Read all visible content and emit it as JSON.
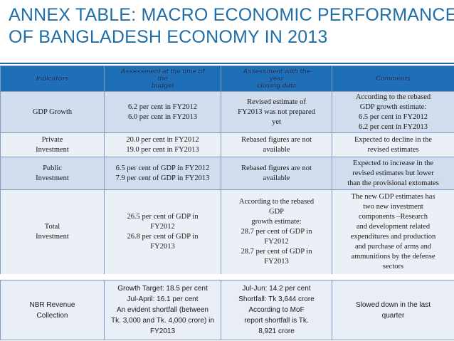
{
  "title": {
    "line1": "ANNEX TABLE: MACRO ECONOMIC PERFORMANCE",
    "line2": "OF BANGLADESH ECONOMY IN 2013"
  },
  "table": {
    "headers": [
      "Indicators",
      "Assessment at the time of\nthe\nbudget",
      "Assessment with the\nyear\nclosing data",
      "Comments"
    ],
    "rows": [
      {
        "indicator": "GDP Growth",
        "budget": "6.2 per cent in FY2012\n6.0 per cent in FY2013",
        "closing": "Revised estimate of\nFY2013 was not prepared\nyet",
        "comments": "According to the rebased\nGDP growth estimate:\n6.5 per cent in FY2012\n6.2 per cent in FY2013"
      },
      {
        "indicator": "Private\nInvestment",
        "budget": "20.0 per cent in FY2012\n19.0 per cent in FY2013",
        "closing": "Rebased figures are not\navailable",
        "comments": "Expected to decline in the\nrevised estimates"
      },
      {
        "indicator": "Public\nInvestment",
        "budget": "6.5 per cent of GDP in FY2012\n7.9 per cent of GDP in FY2013",
        "closing": "Rebased figures are not\navailable",
        "comments": "Expected to increase in the\nrevised estimates but lower\nthan the provisional extomates"
      },
      {
        "indicator": "Total\nInvestment",
        "budget": "26.5 per cent of GDP in\nFY2012\n26.8 per cent of GDP in\nFY2013",
        "closing": "According to the rebased\nGDP\ngrowth estimate:\n28.7 per cent of GDP in\nFY2012\n28.7 per cent of GDP in\nFY2013",
        "comments": "The new GDP estimates has\ntwo new investment\ncomponents –Research\nand development related\nexpenditures and production\nand purchase of arms and\nammunitions by the defense\nsectors"
      }
    ],
    "nbr_row": {
      "indicator": "NBR Revenue\nCollection",
      "budget": "Growth Target: 18.5 per cent\nJul-April: 16.1 per cent\nAn evident shortfall (between\nTk. 3,000 and Tk. 4,000 crore) in\nFY2013",
      "closing": "Jul-Jun: 14.2 per cent\nShortfall: Tk 3,644 crore\nAccording to MoF\nreport shortfall is Tk.\n8,921 crore",
      "comments": "Slowed down in the last\nquarter"
    }
  }
}
